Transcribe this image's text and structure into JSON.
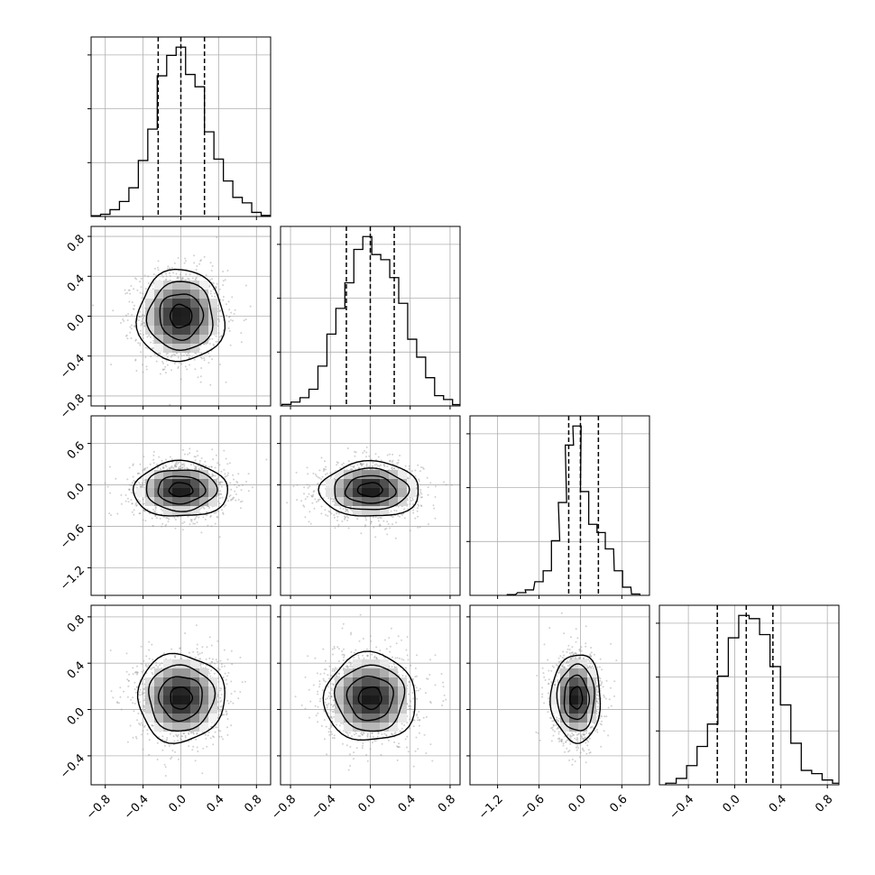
{
  "chart_data": {
    "type": "corner",
    "n_params": 4,
    "title": "",
    "axis_labels": [
      "",
      "",
      "",
      ""
    ],
    "style": {
      "hist_color": "#000000",
      "density_color": "#000000",
      "scatter_color": "#9a9a9a",
      "grid": true,
      "quantile_line": "dashed"
    },
    "params": [
      {
        "range": [
          -0.95,
          0.95
        ],
        "tick_values": [
          -0.8,
          -0.4,
          0.0,
          0.4,
          0.8
        ],
        "tick_labels": [
          "−0.8",
          "−0.4",
          "0.0",
          "0.4",
          "0.8"
        ],
        "quantiles": [
          -0.24,
          0.0,
          0.25
        ],
        "hist": {
          "centers": [
            -0.9,
            -0.8,
            -0.7,
            -0.6,
            -0.5,
            -0.4,
            -0.3,
            -0.2,
            -0.1,
            0.0,
            0.1,
            0.2,
            0.3,
            0.4,
            0.5,
            0.6,
            0.7,
            0.8,
            0.9
          ],
          "counts": [
            0.3,
            0.8,
            2.5,
            5.5,
            10.5,
            20.5,
            32,
            51.5,
            59,
            62,
            52,
            47.5,
            31,
            21,
            13,
            7,
            5,
            1.5,
            0.4
          ]
        }
      },
      {
        "range": [
          -0.9,
          0.9
        ],
        "tick_values": [
          -0.8,
          -0.4,
          0.0,
          0.4,
          0.8
        ],
        "tick_labels": [
          "−0.8",
          "−0.4",
          "0.0",
          "0.4",
          "0.8"
        ],
        "quantiles": [
          -0.24,
          0.0,
          0.24
        ],
        "hist": {
          "centers": [
            -0.84,
            -0.75,
            -0.66,
            -0.57,
            -0.48,
            -0.39,
            -0.3,
            -0.21,
            -0.12,
            -0.03,
            0.06,
            0.15,
            0.24,
            0.33,
            0.42,
            0.51,
            0.6,
            0.69,
            0.78,
            0.87
          ],
          "counts": [
            0.6,
            1.5,
            3.2,
            6.5,
            15.5,
            28,
            38,
            48,
            61,
            66,
            59,
            57,
            50,
            40,
            26,
            19,
            11,
            4,
            2.5,
            0.5
          ]
        }
      },
      {
        "range": [
          -1.6,
          1.0
        ],
        "tick_values": [
          -1.2,
          -0.6,
          0.0,
          0.6
        ],
        "tick_labels": [
          "−1.2",
          "−0.6",
          "0.0",
          "0.6"
        ],
        "quantiles": [
          -0.17,
          0.0,
          0.26
        ],
        "hist": {
          "centers": [
            -1.0,
            -0.85,
            -0.74,
            -0.6,
            -0.48,
            -0.36,
            -0.26,
            -0.16,
            -0.05,
            0.06,
            0.18,
            0.3,
            0.42,
            0.55,
            0.67,
            0.8
          ],
          "counts": [
            0.3,
            1,
            2,
            5,
            9,
            20,
            34,
            55,
            62,
            38,
            26,
            23,
            17,
            9,
            3,
            0.5
          ]
        }
      },
      {
        "range": [
          -0.65,
          0.9
        ],
        "tick_values": [
          -0.4,
          0.0,
          0.4,
          0.8
        ],
        "tick_labels": [
          "−0.4",
          "0.0",
          "0.4",
          "0.8"
        ],
        "quantiles": [
          -0.15,
          0.1,
          0.33
        ],
        "hist": {
          "centers": [
            -0.55,
            -0.46,
            -0.37,
            -0.28,
            -0.19,
            -0.1,
            -0.01,
            0.08,
            0.17,
            0.26,
            0.35,
            0.44,
            0.53,
            0.62,
            0.71,
            0.8,
            0.89
          ],
          "counts": [
            0.5,
            2,
            6,
            12,
            19,
            34,
            46,
            53,
            52,
            47,
            37,
            25,
            13,
            4.5,
            3.5,
            1.5,
            0.5
          ]
        }
      }
    ],
    "pairs": [
      {
        "row": 1,
        "col": 0,
        "center": [
          0.0,
          0.0
        ],
        "sd": [
          0.23,
          0.23
        ],
        "rot": 0
      },
      {
        "row": 2,
        "col": 0,
        "center": [
          0.0,
          -0.07
        ],
        "sd": [
          0.25,
          0.2
        ],
        "rot": 0
      },
      {
        "row": 2,
        "col": 1,
        "center": [
          0.0,
          -0.07
        ],
        "sd": [
          0.25,
          0.2
        ],
        "rot": 0
      },
      {
        "row": 3,
        "col": 0,
        "center": [
          0.0,
          0.1
        ],
        "sd": [
          0.23,
          0.19
        ],
        "rot": 0
      },
      {
        "row": 3,
        "col": 1,
        "center": [
          0.0,
          0.1
        ],
        "sd": [
          0.23,
          0.19
        ],
        "rot": 0
      },
      {
        "row": 3,
        "col": 2,
        "center": [
          -0.06,
          0.1
        ],
        "sd": [
          0.18,
          0.19
        ],
        "rot": 0
      }
    ]
  }
}
